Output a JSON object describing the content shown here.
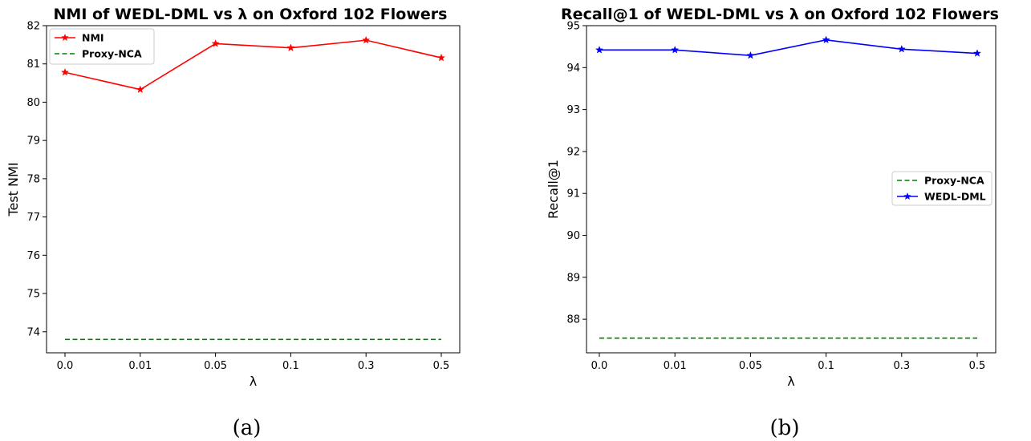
{
  "chart_data": [
    {
      "id": "a",
      "type": "line",
      "title": "NMI of WEDL-DML vs λ on Oxford 102 Flowers",
      "xlabel": "λ",
      "ylabel": "Test NMI",
      "caption": "(a)",
      "categories": [
        "0.0",
        "0.01",
        "0.05",
        "0.1",
        "0.3",
        "0.5"
      ],
      "ylim": [
        73.45,
        82.0
      ],
      "yticks": [
        74,
        75,
        76,
        77,
        78,
        79,
        80,
        81,
        82
      ],
      "grid": false,
      "legend_position": "upper-left",
      "series": [
        {
          "name": "NMI",
          "values": [
            80.78,
            80.33,
            81.53,
            81.42,
            81.62,
            81.16
          ],
          "color": "#ff0000",
          "style": "solid",
          "marker": "star"
        },
        {
          "name": "Proxy-NCA",
          "values": [
            73.8,
            73.8,
            73.8,
            73.8,
            73.8,
            73.8
          ],
          "color": "#008000",
          "style": "dashed",
          "marker": "none"
        }
      ]
    },
    {
      "id": "b",
      "type": "line",
      "title": "Recall@1 of WEDL-DML vs λ on Oxford 102 Flowers",
      "xlabel": "λ",
      "ylabel": "Recall@1",
      "caption": "(b)",
      "categories": [
        "0.0",
        "0.01",
        "0.05",
        "0.1",
        "0.3",
        "0.5"
      ],
      "ylim": [
        87.2,
        95.0
      ],
      "yticks": [
        88,
        89,
        90,
        91,
        92,
        93,
        94,
        95
      ],
      "grid": false,
      "legend_position": "center-right",
      "series": [
        {
          "name": "Proxy-NCA",
          "values": [
            87.55,
            87.55,
            87.55,
            87.55,
            87.55,
            87.55
          ],
          "color": "#008000",
          "style": "dashed",
          "marker": "none"
        },
        {
          "name": "WEDL-DML",
          "values": [
            94.42,
            94.42,
            94.29,
            94.66,
            94.44,
            94.34
          ],
          "color": "#0000ff",
          "style": "solid",
          "marker": "star"
        }
      ]
    }
  ]
}
